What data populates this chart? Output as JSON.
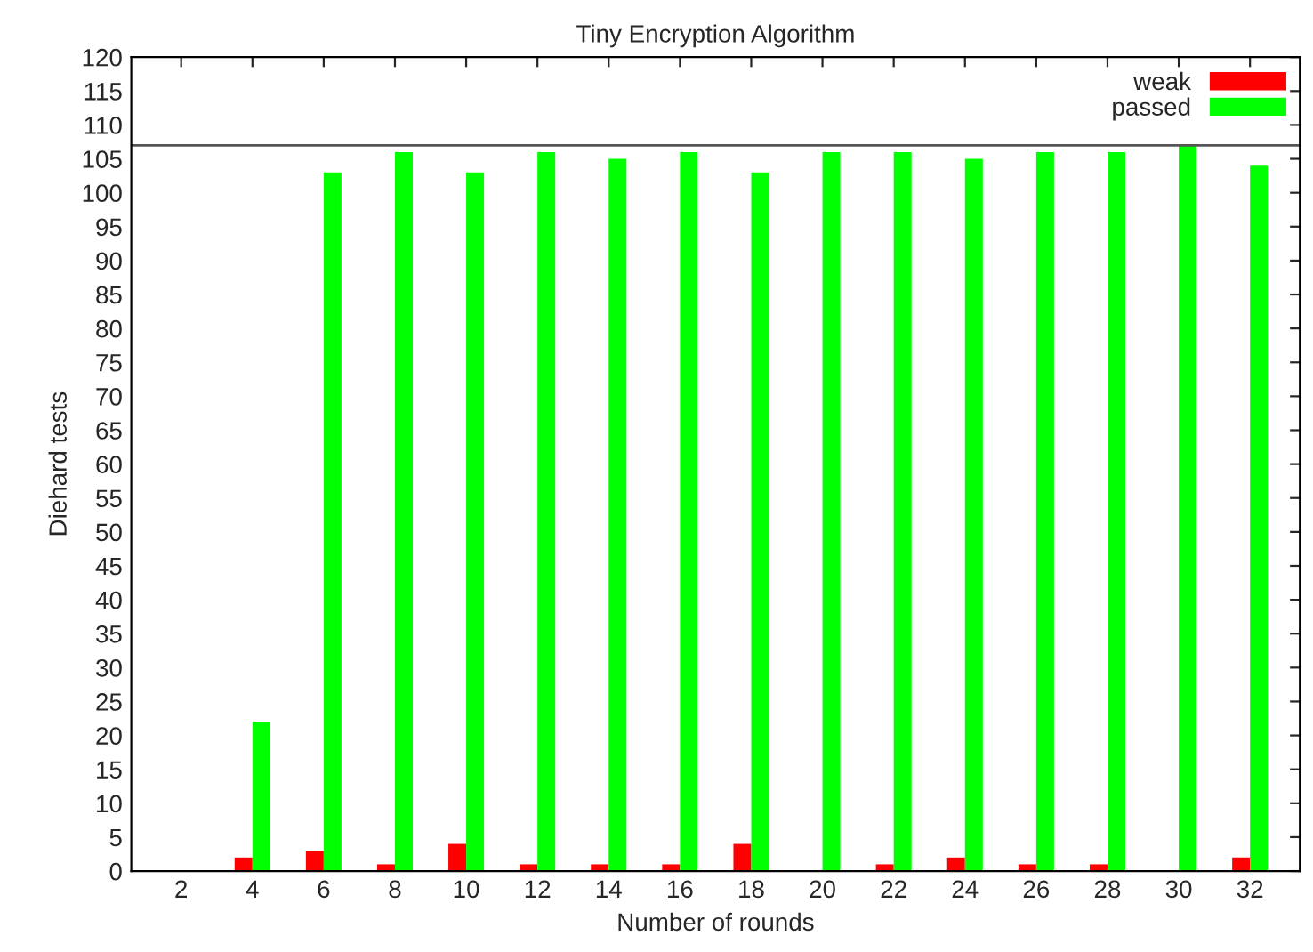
{
  "chart_data": {
    "type": "bar",
    "title": "Tiny Encryption Algorithm",
    "xlabel": "Number of rounds",
    "ylabel": "Diehard tests",
    "categories": [
      "2",
      "4",
      "6",
      "8",
      "10",
      "12",
      "14",
      "16",
      "18",
      "20",
      "22",
      "24",
      "26",
      "28",
      "30",
      "32"
    ],
    "series": [
      {
        "name": "weak",
        "color": "#ff0000",
        "values": [
          0,
          2,
          3,
          1,
          4,
          1,
          1,
          1,
          4,
          0,
          1,
          2,
          1,
          1,
          0,
          2
        ]
      },
      {
        "name": "passed",
        "color": "#00ff00",
        "values": [
          0,
          22,
          103,
          106,
          103,
          106,
          105,
          106,
          103,
          106,
          106,
          105,
          106,
          106,
          107,
          104
        ]
      }
    ],
    "ylim": [
      0,
      120
    ],
    "yticks": [
      0,
      5,
      10,
      15,
      20,
      25,
      30,
      35,
      40,
      45,
      50,
      55,
      60,
      65,
      70,
      75,
      80,
      85,
      90,
      95,
      100,
      105,
      110,
      115,
      120
    ],
    "ref_lines": [
      {
        "axis": "y",
        "value": 107,
        "color": "#555555"
      }
    ],
    "grid": false,
    "legend": "top right"
  }
}
